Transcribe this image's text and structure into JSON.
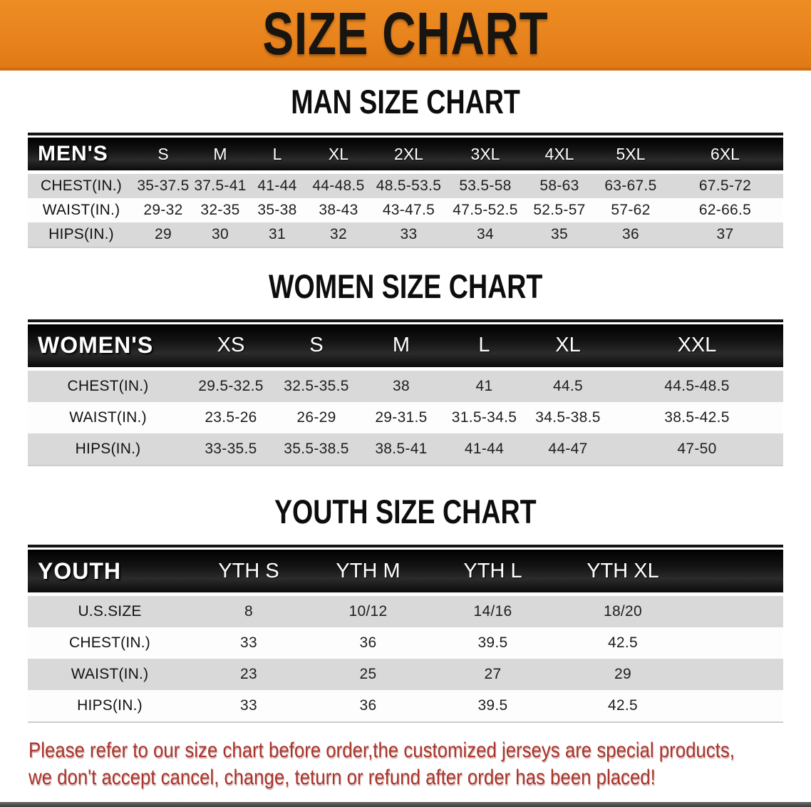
{
  "banner": {
    "title": "SIZE CHART",
    "bg_color": "#E8831D",
    "text_color": "#181511"
  },
  "colors": {
    "header_row_bg": "#141414",
    "stripe_row_bg": "#D9D9D9",
    "disclaimer_red": "#A8352C"
  },
  "sections": [
    {
      "heading": "MAN SIZE CHART",
      "table": {
        "header_label": "MEN'S",
        "columns": [
          "S",
          "M",
          "L",
          "XL",
          "2XL",
          "3XL",
          "4XL",
          "5XL",
          "6XL"
        ],
        "rows": [
          {
            "label": "CHEST(IN.)",
            "values": [
              "35-37.5",
              "37.5-41",
              "41-44",
              "44-48.5",
              "48.5-53.5",
              "53.5-58",
              "58-63",
              "63-67.5",
              "67.5-72"
            ]
          },
          {
            "label": "WAIST(IN.)",
            "values": [
              "29-32",
              "32-35",
              "35-38",
              "38-43",
              "43-47.5",
              "47.5-52.5",
              "52.5-57",
              "57-62",
              "62-66.5"
            ]
          },
          {
            "label": "HIPS(IN.)",
            "values": [
              "29",
              "30",
              "31",
              "32",
              "33",
              "34",
              "35",
              "36",
              "37"
            ]
          }
        ]
      }
    },
    {
      "heading": "WOMEN SIZE CHART",
      "table": {
        "header_label": "WOMEN'S",
        "columns": [
          "XS",
          "S",
          "M",
          "L",
          "XL",
          "XXL"
        ],
        "rows": [
          {
            "label": "CHEST(IN.)",
            "values": [
              "29.5-32.5",
              "32.5-35.5",
              "38",
              "41",
              "44.5",
              "44.5-48.5"
            ]
          },
          {
            "label": "WAIST(IN.)",
            "values": [
              "23.5-26",
              "26-29",
              "29-31.5",
              "31.5-34.5",
              "34.5-38.5",
              "38.5-42.5"
            ]
          },
          {
            "label": "HIPS(IN.)",
            "values": [
              "33-35.5",
              "35.5-38.5",
              "38.5-41",
              "41-44",
              "44-47",
              "47-50"
            ]
          }
        ]
      }
    },
    {
      "heading": "YOUTH SIZE CHART",
      "table": {
        "header_label": "YOUTH",
        "columns": [
          "YTH S",
          "YTH M",
          "YTH L",
          "YTH XL"
        ],
        "rows": [
          {
            "label": "U.S.SIZE",
            "values": [
              "8",
              "10/12",
              "14/16",
              "18/20"
            ]
          },
          {
            "label": "CHEST(IN.)",
            "values": [
              "33",
              "36",
              "39.5",
              "42.5"
            ]
          },
          {
            "label": "WAIST(IN.)",
            "values": [
              "23",
              "25",
              "27",
              "29"
            ]
          },
          {
            "label": "HIPS(IN.)",
            "values": [
              "33",
              "36",
              "39.5",
              "42.5"
            ]
          }
        ]
      }
    }
  ],
  "disclaimer": {
    "line1": "Please refer to our size chart before order,the customized jerseys are special products,",
    "line2": "we don't accept cancel, change, teturn or refund after order has been placed!"
  }
}
